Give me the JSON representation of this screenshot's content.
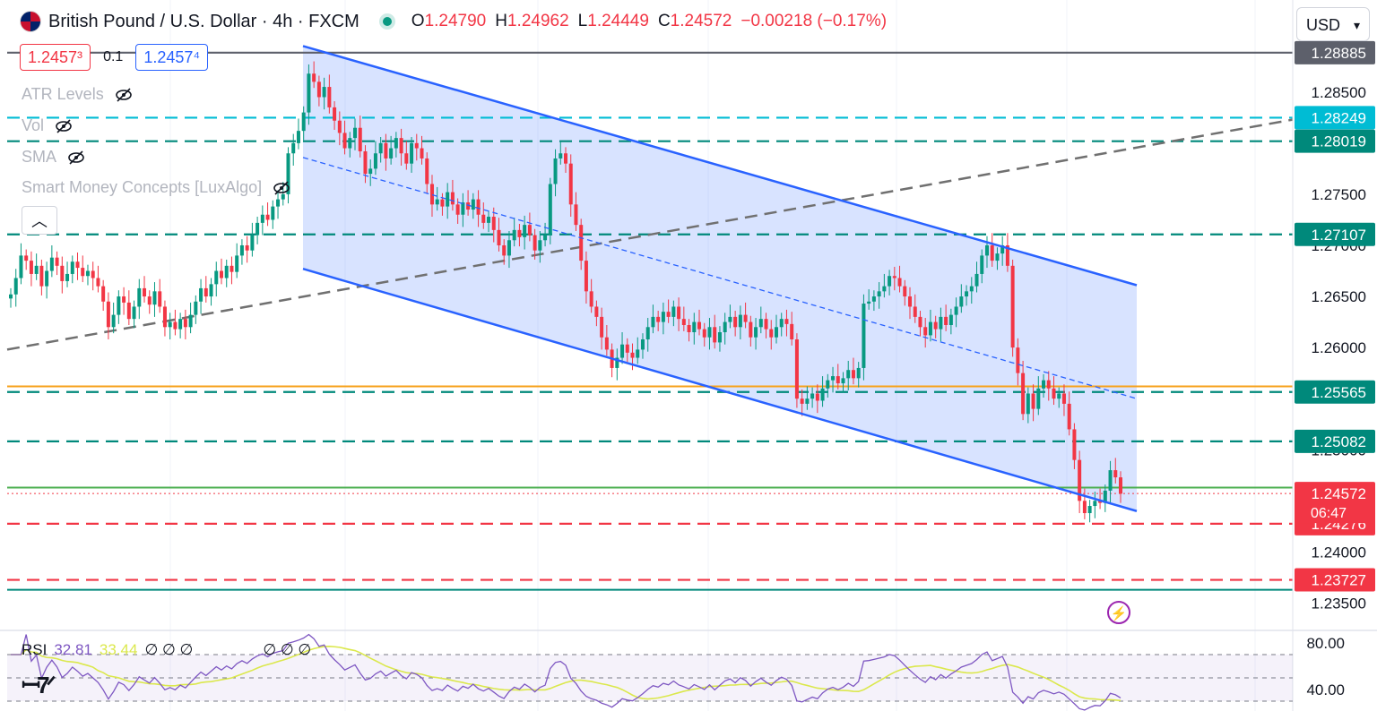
{
  "header": {
    "symbol": "British Pound / U.S. Dollar · 4h · FXCM",
    "open_label": "O",
    "open": "1.24790",
    "high_label": "H",
    "high": "1.24962",
    "low_label": "L",
    "low": "1.24449",
    "close_label": "C",
    "close": "1.24572",
    "change": "−0.00218 (−0.17%)"
  },
  "trade": {
    "sell": "1.2457³",
    "spread": "0.1",
    "buy": "1.2457⁴"
  },
  "indicators": [
    "ATR Levels",
    "Vol",
    "SMA",
    "Smart Money Concepts [LuxAlgo]"
  ],
  "currency": "USD",
  "rsi_legend": {
    "name": "RSI",
    "value": "32.81",
    "ma": "33.44",
    "s1": "∅ ∅ ∅",
    "s2": "∅ ∅ ∅"
  },
  "icons": [
    "flag-icon",
    "market-open-dot-icon",
    "eye-slash-icon",
    "chevron-up-icon",
    "chevron-down-icon",
    "lightning-icon",
    "tradingview-logo-icon"
  ],
  "colors": {
    "up": "#089981",
    "down": "#f23645",
    "channel": "#2962ff",
    "orange": "#f7a21b",
    "green": "#4caf50",
    "teal": "#00897b",
    "cyan": "#00bcd4",
    "rsi": "#7e57c2",
    "rsi_ma": "#dbe84c"
  },
  "chart_data": {
    "type": "candlestick",
    "symbol": "GBPUSD",
    "timeframe": "4h",
    "ylim": [
      1.2325,
      1.2905
    ],
    "y_ticks": [
      "1.28500",
      "1.27500",
      "1.27000",
      "1.26500",
      "1.26000",
      "1.25000",
      "1.24000",
      "1.23500"
    ],
    "levels": [
      {
        "value": 1.28885,
        "label": "1.28885",
        "color": "#5d606b",
        "style": "solid"
      },
      {
        "value": 1.28249,
        "label": "1.28249",
        "color": "#00bcd4",
        "style": "dashed"
      },
      {
        "value": 1.28019,
        "label": "1.28019",
        "color": "#00897b",
        "style": "dashed"
      },
      {
        "value": 1.27107,
        "label": "1.27107",
        "color": "#00897b",
        "style": "dashed"
      },
      {
        "value": 1.25565,
        "label": "1.25565",
        "color": "#00897b",
        "style": "dashed"
      },
      {
        "value": 1.25082,
        "label": "1.25082",
        "color": "#00897b",
        "style": "dashed"
      },
      {
        "value": 1.24276,
        "label": "1.24276",
        "color": "#f23645",
        "style": "dashed"
      },
      {
        "value": 1.23727,
        "label": "1.23727",
        "color": "#f23645",
        "style": "dashed"
      }
    ],
    "extra_lines": [
      {
        "value": 1.2562,
        "color": "#f7a21b"
      },
      {
        "value": 1.2463,
        "color": "#4caf50"
      },
      {
        "value": 1.2363,
        "color": "#00897b"
      }
    ],
    "last_price": {
      "value": 1.24572,
      "label": "1.24572",
      "countdown": "06:47"
    },
    "channel": {
      "upper_start": [
        1.2895,
        0
      ],
      "upper_end": [
        1.2661,
        1
      ],
      "lower_start": [
        1.2677,
        0
      ],
      "lower_end": [
        1.244,
        1
      ],
      "mid_start": [
        1.2786,
        0
      ],
      "mid_end": [
        1.255,
        1
      ]
    },
    "trendline": {
      "start": 1.2598,
      "end": 1.2823
    },
    "closes": [
      1.2652,
      1.2668,
      1.269,
      1.2685,
      1.2672,
      1.268,
      1.266,
      1.2675,
      1.2688,
      1.268,
      1.2665,
      1.2672,
      1.2684,
      1.2678,
      1.267,
      1.2675,
      1.2668,
      1.266,
      1.2645,
      1.262,
      1.2632,
      1.265,
      1.2644,
      1.2628,
      1.264,
      1.2658,
      1.265,
      1.2642,
      1.2655,
      1.264,
      1.262,
      1.2625,
      1.2618,
      1.2628,
      1.262,
      1.2632,
      1.2645,
      1.2658,
      1.265,
      1.2662,
      1.2675,
      1.2668,
      1.268,
      1.2674,
      1.269,
      1.27,
      1.2695,
      1.271,
      1.2722,
      1.273,
      1.2725,
      1.2738,
      1.2745,
      1.275,
      1.279,
      1.28,
      1.2812,
      1.283,
      1.2868,
      1.286,
      1.2845,
      1.2855,
      1.2835,
      1.2822,
      1.281,
      1.2795,
      1.2805,
      1.2815,
      1.2792,
      1.277,
      1.2775,
      1.279,
      1.28,
      1.2785,
      1.2795,
      1.2805,
      1.279,
      1.278,
      1.28,
      1.2795,
      1.2785,
      1.276,
      1.274,
      1.2745,
      1.2738,
      1.2752,
      1.274,
      1.273,
      1.2742,
      1.2735,
      1.2745,
      1.273,
      1.2722,
      1.2728,
      1.2715,
      1.27,
      1.269,
      1.2705,
      1.2715,
      1.2708,
      1.272,
      1.271,
      1.2695,
      1.2705,
      1.271,
      1.276,
      1.2785,
      1.279,
      1.278,
      1.274,
      1.272,
      1.2685,
      1.2655,
      1.264,
      1.263,
      1.261,
      1.2598,
      1.258,
      1.259,
      1.2603,
      1.2595,
      1.259,
      1.2598,
      1.2608,
      1.262,
      1.263,
      1.2625,
      1.2635,
      1.263,
      1.264,
      1.2628,
      1.2622,
      1.2615,
      1.2625,
      1.2618,
      1.261,
      1.262,
      1.2605,
      1.2615,
      1.2625,
      1.263,
      1.262,
      1.2632,
      1.2625,
      1.261,
      1.262,
      1.2628,
      1.2618,
      1.261,
      1.262,
      1.2628,
      1.2623,
      1.2608,
      1.255,
      1.2545,
      1.255,
      1.2555,
      1.2548,
      1.256,
      1.2568,
      1.2572,
      1.2565,
      1.257,
      1.2578,
      1.257,
      1.258,
      1.2643,
      1.2645,
      1.265,
      1.2655,
      1.266,
      1.267,
      1.2668,
      1.266,
      1.265,
      1.264,
      1.263,
      1.262,
      1.2612,
      1.2625,
      1.2618,
      1.263,
      1.2622,
      1.2632,
      1.264,
      1.265,
      1.2655,
      1.266,
      1.2672,
      1.269,
      1.27,
      1.2685,
      1.2692,
      1.27,
      1.268,
      1.26,
      1.2575,
      1.2535,
      1.2555,
      1.254,
      1.256,
      1.2568,
      1.256,
      1.255,
      1.2555,
      1.2545,
      1.252,
      1.249,
      1.245,
      1.2438,
      1.2445,
      1.245,
      1.2448,
      1.246,
      1.248,
      1.2473,
      1.2457
    ]
  }
}
